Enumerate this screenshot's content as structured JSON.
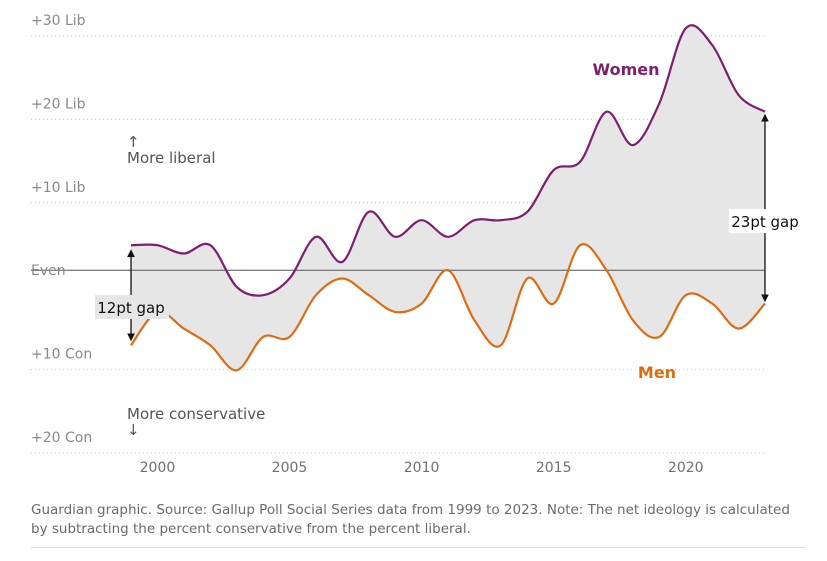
{
  "chart_data": {
    "type": "area",
    "title": "",
    "xlabel": "",
    "ylabel": "",
    "x": [
      1999,
      2000,
      2001,
      2002,
      2003,
      2004,
      2005,
      2006,
      2007,
      2008,
      2009,
      2010,
      2011,
      2012,
      2013,
      2014,
      2015,
      2016,
      2017,
      2018,
      2019,
      2020,
      2021,
      2022,
      2023
    ],
    "series": [
      {
        "name": "Women",
        "color": "#7d1f6f",
        "values": [
          3,
          3,
          2,
          3,
          -2,
          -3,
          -1,
          4,
          1,
          7,
          4,
          6,
          4,
          6,
          6,
          7,
          12,
          13,
          19,
          15,
          20,
          29,
          27,
          21,
          19
        ]
      },
      {
        "name": "Men",
        "color": "#e06c12",
        "values": [
          -9,
          -5,
          -7,
          -9,
          -12,
          -8,
          -8,
          -3,
          -1,
          -3,
          -5,
          -4,
          0,
          -6,
          -9,
          -1,
          -4,
          3,
          0,
          -6,
          -8,
          -3,
          -4,
          -7,
          -4
        ]
      }
    ],
    "y_ticks": [
      {
        "value": 30,
        "label": "+30 Lib"
      },
      {
        "value": 20,
        "label": "+20 Lib"
      },
      {
        "value": 10,
        "label": "+10 Lib"
      },
      {
        "value": 0,
        "label": "Even"
      },
      {
        "value": -10,
        "label": "+10 Con"
      },
      {
        "value": -20,
        "label": "+20 Con"
      }
    ],
    "x_ticks": [
      2000,
      2005,
      2010,
      2015,
      2020
    ],
    "ylim": [
      -20,
      30
    ],
    "xlim": [
      1994,
      2024
    ],
    "grid": "horizontal-dotted",
    "annotations": {
      "more_liberal_arrow": "↑",
      "more_liberal": "More liberal",
      "more_conservative": "More conservative",
      "more_conservative_arrow": "↓",
      "gap_start": {
        "label": "12pt gap",
        "year": 1999
      },
      "gap_end": {
        "label": "23pt gap",
        "year": 2023
      }
    }
  },
  "footer": {
    "source": "Guardian graphic. Source: Gallup Poll Social Series data from 1999 to 2023. Note: The net ideology is calculated by subtracting the percent conservative from the percent liberal."
  }
}
